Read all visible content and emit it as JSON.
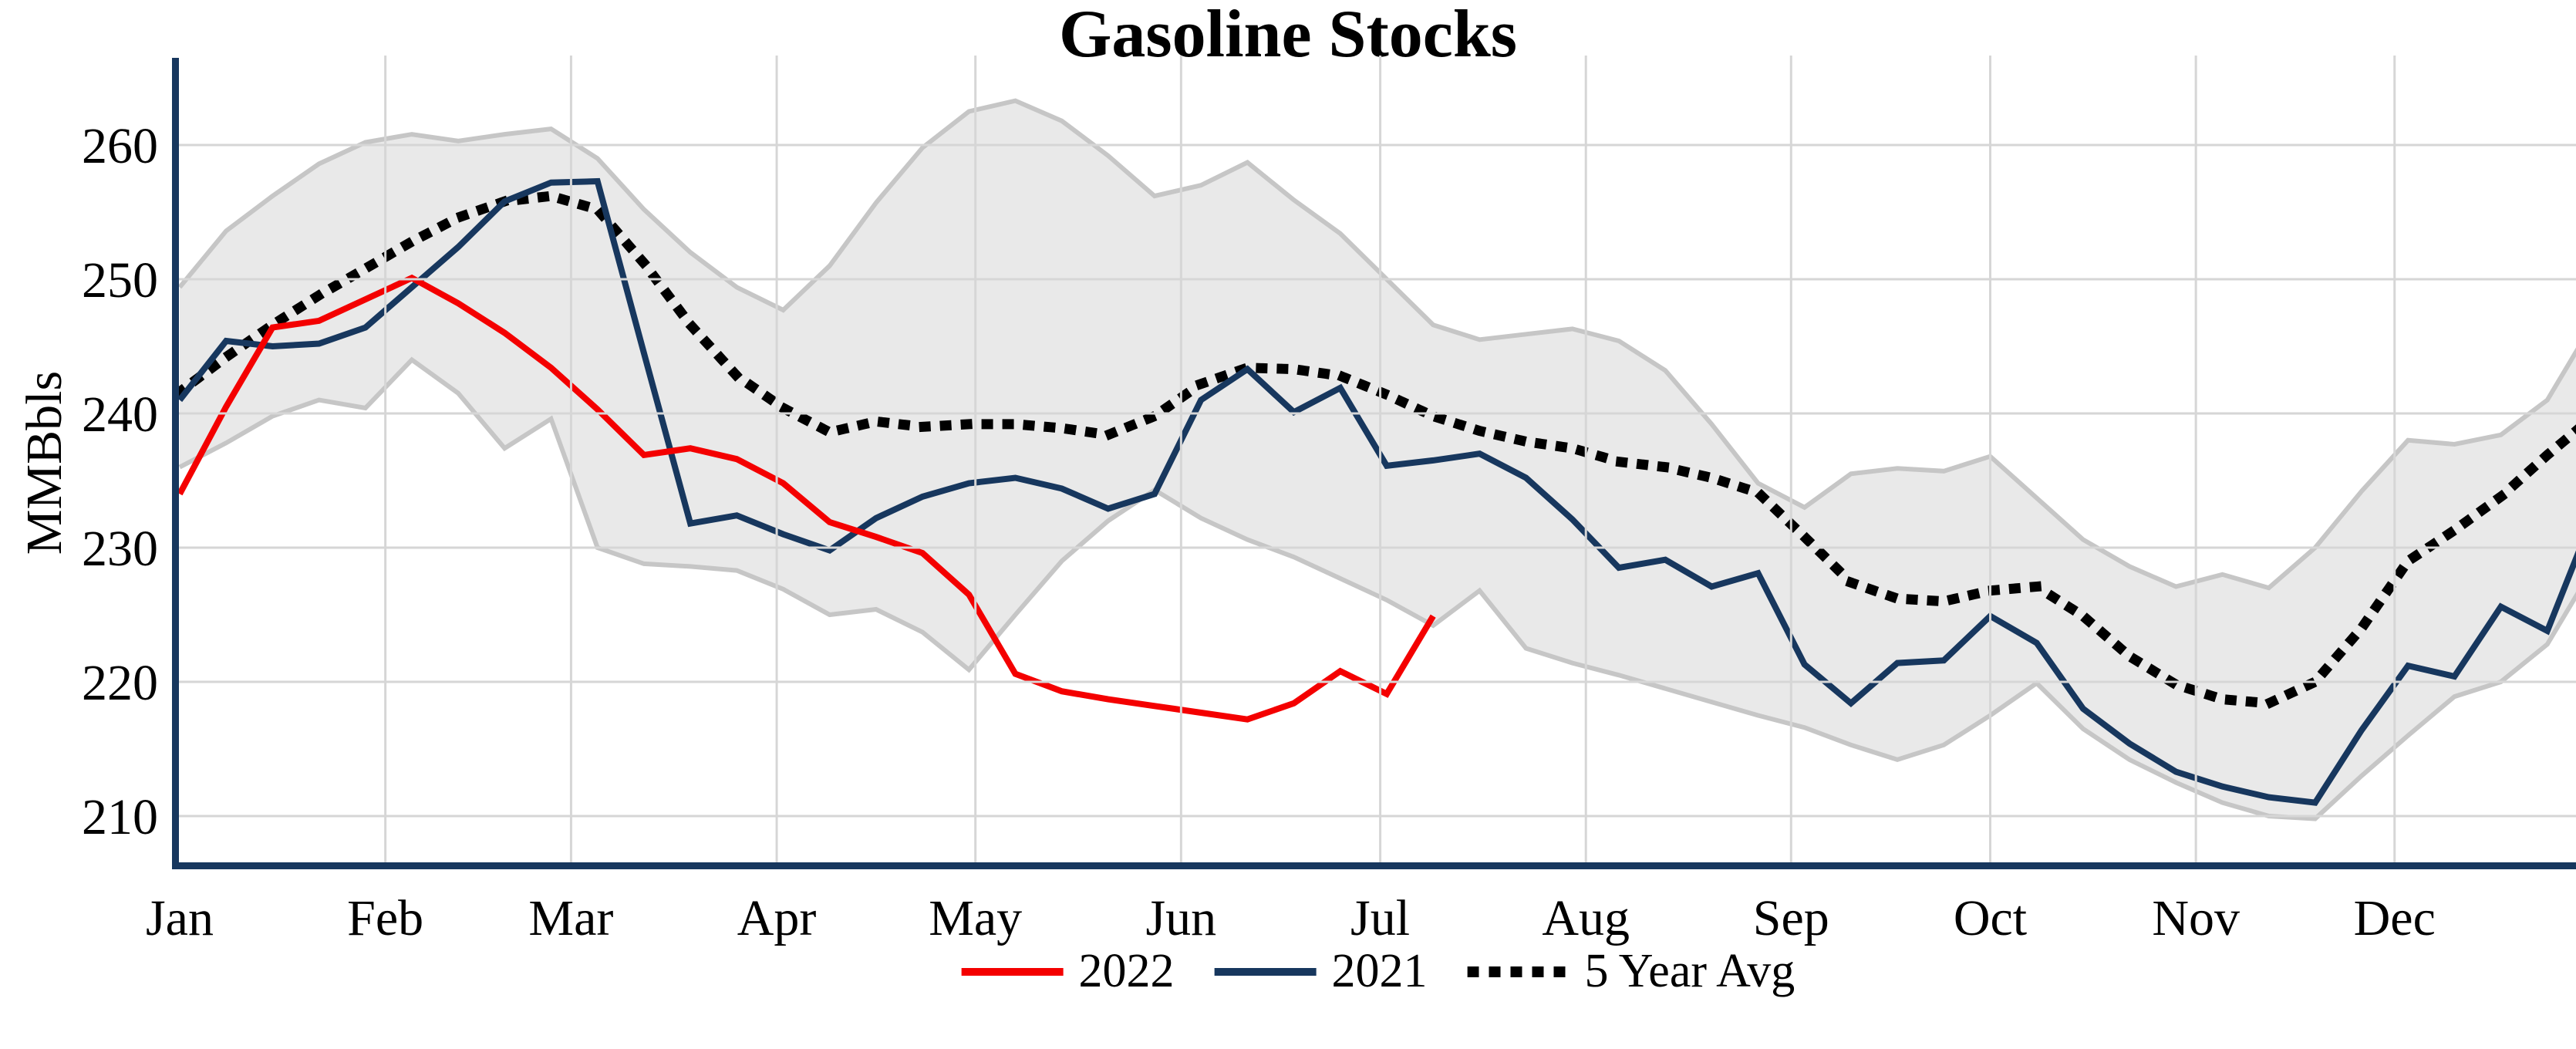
{
  "title": "Gasoline Stocks",
  "y_axis": {
    "label": "MMBbls",
    "ticks": [
      210,
      220,
      230,
      240,
      250,
      260
    ]
  },
  "x_axis": {
    "months": [
      "Jan",
      "Feb",
      "Mar",
      "Apr",
      "May",
      "Jun",
      "Jul",
      "Aug",
      "Sep",
      "Oct",
      "Nov",
      "Dec"
    ],
    "month_week_positions": [
      0,
      4.43,
      8.43,
      12.86,
      17.14,
      21.57,
      25.86,
      30.29,
      34.71,
      39.0,
      43.43,
      47.71
    ]
  },
  "legend": {
    "items": [
      {
        "label": "2022",
        "series": "2022"
      },
      {
        "label": "2021",
        "series": "2021"
      },
      {
        "label": "5 Year Avg",
        "series": "5 Year Avg"
      }
    ]
  },
  "chart_data": {
    "type": "line",
    "title": "Gasoline Stocks",
    "xlabel": "",
    "ylabel": "MMBbls",
    "x_unit": "week_of_year",
    "ylim": [
      206.5,
      266.3
    ],
    "grid": true,
    "legend_position": "bottom-center",
    "gridline_color": "#d6d6d6",
    "axis_color": "#17375e",
    "series": [
      {
        "name": "2022",
        "color": "#f40000",
        "style": "solid",
        "width": 8,
        "values": [
          234.0,
          240.5,
          246.4,
          246.9,
          248.5,
          250.1,
          248.2,
          246.0,
          243.4,
          240.3,
          236.9,
          237.4,
          236.6,
          234.8,
          231.9,
          230.8,
          229.6,
          226.5,
          220.6,
          219.3,
          218.7,
          218.2,
          217.7,
          217.2,
          218.4,
          220.8,
          219.1,
          224.9
        ]
      },
      {
        "name": "2021",
        "color": "#17375e",
        "style": "solid",
        "width": 8,
        "values": [
          241.0,
          245.4,
          245.0,
          245.2,
          246.4,
          249.4,
          252.4,
          255.8,
          257.2,
          257.3,
          244.5,
          231.8,
          232.4,
          231.0,
          229.8,
          232.2,
          233.8,
          234.8,
          235.2,
          234.4,
          232.9,
          234.0,
          241.0,
          243.3,
          240.1,
          241.9,
          236.1,
          236.5,
          237.0,
          235.2,
          232.1,
          228.5,
          229.1,
          227.1,
          228.1,
          221.3,
          218.4,
          221.4,
          221.6,
          224.9,
          222.9,
          218.0,
          215.4,
          213.3,
          212.2,
          211.4,
          211.0,
          216.4,
          221.2,
          220.4,
          225.6,
          223.8,
          232.5
        ]
      },
      {
        "name": "5 Year Avg",
        "color": "#000000",
        "style": "dotted",
        "width": 13,
        "values": [
          241.6,
          244.2,
          246.6,
          248.8,
          250.8,
          252.8,
          254.6,
          255.8,
          256.2,
          255.2,
          251.2,
          246.6,
          242.8,
          240.4,
          238.6,
          239.4,
          239.0,
          239.2,
          239.2,
          238.9,
          238.4,
          239.8,
          242.2,
          243.4,
          243.3,
          242.8,
          241.4,
          239.8,
          238.7,
          237.9,
          237.4,
          236.4,
          236.0,
          235.2,
          234.1,
          230.8,
          227.4,
          226.2,
          226.0,
          226.8,
          227.1,
          224.9,
          221.9,
          219.8,
          218.7,
          218.4,
          220.0,
          224.0,
          229.0,
          231.3,
          233.8,
          236.9,
          239.8
        ]
      }
    ],
    "band": {
      "name": "5 year range",
      "fill": "#e9e9e9",
      "edge": "#c6c6c6",
      "upper": [
        249.4,
        253.6,
        256.2,
        258.6,
        260.2,
        260.8,
        260.3,
        260.8,
        261.2,
        259.0,
        255.2,
        252.0,
        249.4,
        247.7,
        251.0,
        255.7,
        259.8,
        262.5,
        263.3,
        261.8,
        259.2,
        256.2,
        257.0,
        258.7,
        255.9,
        253.4,
        250.0,
        246.6,
        245.5,
        245.9,
        246.3,
        245.4,
        243.2,
        239.2,
        234.8,
        233.0,
        235.5,
        235.9,
        235.7,
        236.8,
        233.7,
        230.6,
        228.6,
        227.1,
        228.0,
        227.0,
        230.0,
        234.2,
        238.0,
        237.7,
        238.4,
        241.0,
        246.8
      ],
      "lower": [
        236.0,
        237.8,
        239.8,
        241.0,
        240.4,
        244.0,
        241.5,
        237.4,
        239.6,
        230.0,
        228.8,
        228.6,
        228.3,
        226.9,
        225.0,
        225.4,
        223.7,
        220.9,
        225.0,
        229.0,
        232.0,
        234.3,
        232.2,
        230.6,
        229.3,
        227.7,
        226.1,
        224.2,
        226.8,
        222.5,
        221.4,
        220.5,
        219.5,
        218.5,
        217.5,
        216.6,
        215.3,
        214.2,
        215.3,
        217.5,
        219.9,
        216.5,
        214.2,
        212.5,
        211.0,
        210.0,
        209.8,
        213.0,
        216.0,
        218.9,
        220.0,
        222.8,
        228.6
      ]
    }
  }
}
